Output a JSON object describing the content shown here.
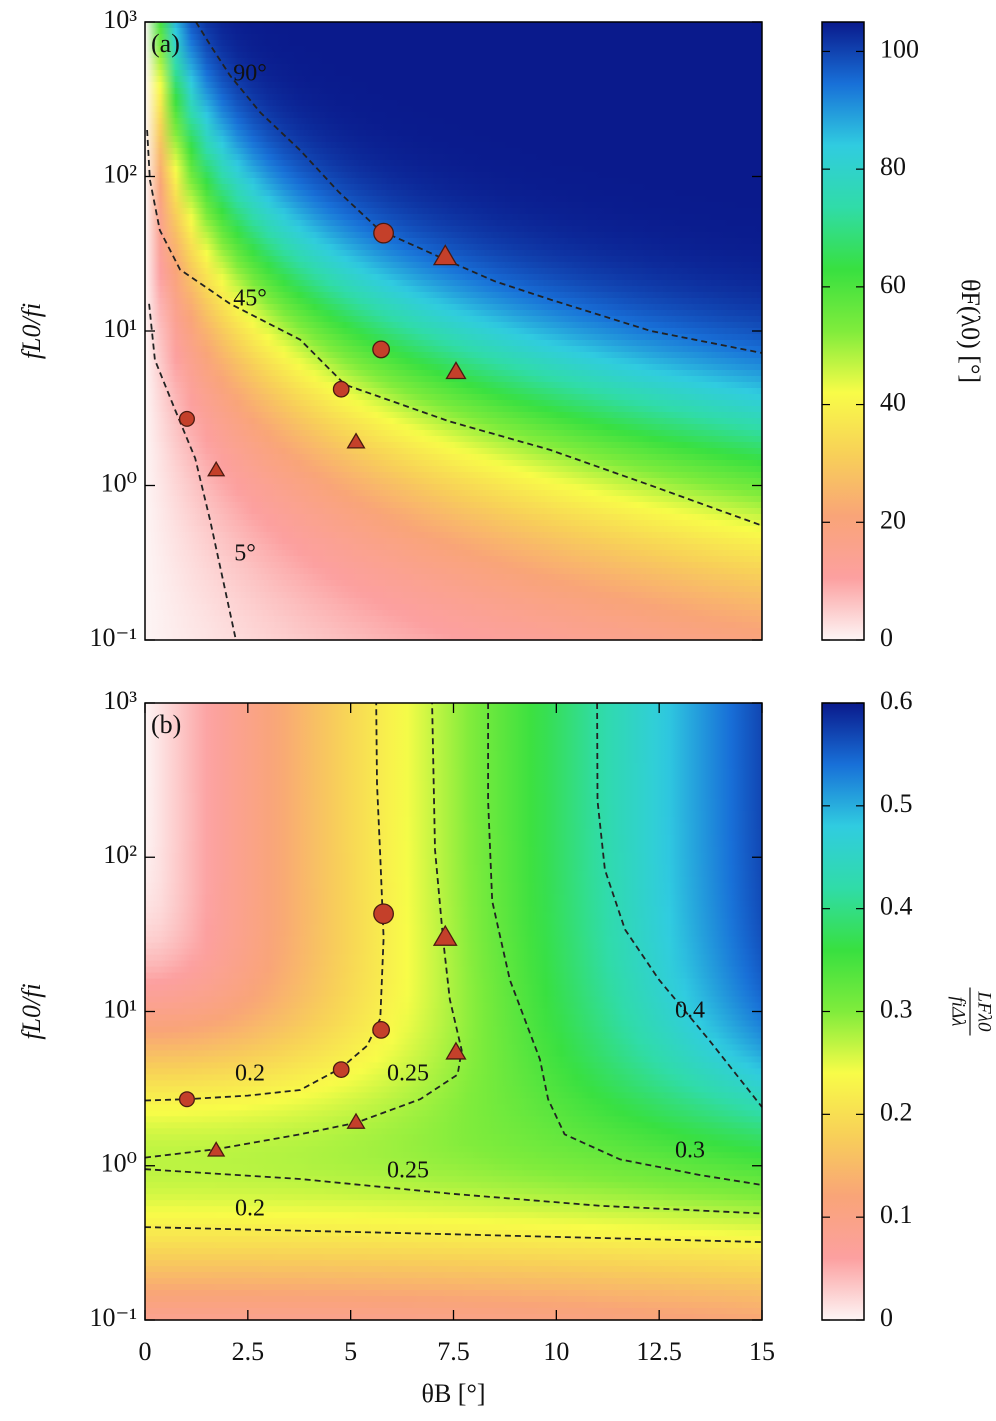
{
  "chart_data": [
    {
      "type": "contour",
      "panel_label": "(a)",
      "ylabel": "fL0/fi",
      "xlim": [
        0,
        15
      ],
      "ylim": [
        0.1,
        1000
      ],
      "log_y": true,
      "yticks": [
        {
          "value": 0.1,
          "label": "10⁻¹"
        },
        {
          "value": 1,
          "label": "10⁰"
        },
        {
          "value": 10,
          "label": "10¹"
        },
        {
          "value": 100,
          "label": "10²"
        },
        {
          "value": 1000,
          "label": "10³"
        }
      ],
      "colormap": [
        "#fdf5f5",
        "#fca0a0",
        "#f9a478",
        "#f8d058",
        "#f8fc48",
        "#80ec3c",
        "#38e040",
        "#30dca8",
        "#30cce0",
        "#1870d8",
        "#0a1a8c"
      ],
      "colorbar": {
        "label": "θF(λ0) [°]",
        "lim": [
          0,
          105
        ],
        "ticks": [
          0,
          20,
          40,
          60,
          80,
          100
        ]
      },
      "contour_color": "#222222",
      "contours": [
        {
          "label": "90°",
          "x": [
            1.24,
            1.6,
            2.07,
            2.8,
            3.77,
            4.7,
            5.7,
            7.3,
            8.5,
            9.85,
            12.3,
            15
          ],
          "y": [
            1000,
            700,
            450,
            260,
            148,
            80,
            45,
            29,
            21,
            16,
            10,
            7.2
          ]
        },
        {
          "label": "45°",
          "x": [
            0.05,
            0.12,
            0.36,
            0.85,
            2.07,
            3.77,
            4.86,
            7.4,
            9.85,
            12.3,
            15
          ],
          "y": [
            200,
            95,
            45,
            25,
            15,
            8.8,
            4.5,
            2.6,
            1.7,
            1.0,
            0.55
          ]
        },
        {
          "label": "5°",
          "x": [
            0.1,
            0.24,
            0.73,
            1.22,
            1.58,
            1.95,
            2.21
          ],
          "y": [
            15,
            6.5,
            3.1,
            1.5,
            0.6,
            0.21,
            0.1
          ]
        }
      ],
      "series": [
        {
          "marker": "circle",
          "color": "#c4402a",
          "edgecolor": "#4a1a10",
          "x": [
            1.02,
            4.77,
            5.74,
            5.8
          ],
          "y": [
            2.7,
            4.2,
            7.6,
            43
          ]
        },
        {
          "marker": "triangle",
          "color": "#c4402a",
          "edgecolor": "#4a1a10",
          "x": [
            1.73,
            5.13,
            7.56,
            7.3
          ],
          "y": [
            1.25,
            1.9,
            5.4,
            30
          ]
        }
      ]
    },
    {
      "type": "contour",
      "panel_label": "(b)",
      "ylabel": "fL0/fi",
      "xlabel": "θB [°]",
      "xlim": [
        0,
        15
      ],
      "xticks": [
        0,
        2.5,
        5,
        7.5,
        10,
        12.5,
        15
      ],
      "ylim": [
        0.1,
        1000
      ],
      "log_y": true,
      "yticks": [
        {
          "value": 0.1,
          "label": "10⁻¹"
        },
        {
          "value": 1,
          "label": "10⁰"
        },
        {
          "value": 10,
          "label": "10¹"
        },
        {
          "value": 100,
          "label": "10²"
        },
        {
          "value": 1000,
          "label": "10³"
        }
      ],
      "colormap": [
        "#fdf5f5",
        "#fca0a0",
        "#f9a478",
        "#f8d058",
        "#f8fc48",
        "#80ec3c",
        "#38e040",
        "#30dca8",
        "#30cce0",
        "#1870d8",
        "#0a1a8c"
      ],
      "colorbar": {
        "label_numerator": "LFλ0",
        "label_denominator": "fiΔλ",
        "lim": [
          0,
          0.6
        ],
        "ticks": [
          0,
          0.1,
          0.2,
          0.3,
          0.4,
          0.5,
          0.6
        ]
      },
      "contour_color": "#222222",
      "contours": [
        {
          "label": "0.2",
          "x": [
            0,
            1.02,
            2.5,
            3.77,
            4.77,
            5.4,
            5.72,
            5.8,
            5.72,
            5.64,
            5.62
          ],
          "y": [
            2.65,
            2.7,
            2.85,
            3.1,
            4.3,
            6,
            9,
            30,
            100,
            300,
            1000
          ]
        },
        {
          "label": "0.25",
          "x": [
            0,
            1.73,
            3.77,
            5.13,
            6.69,
            7.6,
            7.7,
            7.41,
            7.25,
            7.05,
            6.98
          ],
          "y": [
            1.13,
            1.28,
            1.6,
            1.9,
            2.7,
            3.9,
            5.6,
            12,
            29,
            112,
            1000
          ]
        },
        {
          "label": "0.3",
          "x": [
            8.34,
            8.34,
            8.44,
            8.87,
            9.6,
            9.8,
            10.2,
            11.55,
            13.5,
            15
          ],
          "y": [
            1000,
            233,
            52,
            16,
            4.9,
            2.7,
            1.6,
            1.1,
            0.87,
            0.75
          ]
        },
        {
          "label": "0.4",
          "x": [
            10.99,
            11.0,
            11.18,
            11.67,
            12.5,
            13.7,
            15
          ],
          "y": [
            1000,
            233,
            83,
            34,
            16,
            6.6,
            2.4
          ]
        },
        {
          "label": "0.25",
          "x": [
            0,
            3.77,
            7.41,
            11.06,
            15
          ],
          "y": [
            0.95,
            0.82,
            0.66,
            0.55,
            0.49
          ]
        },
        {
          "label": "0.2",
          "x": [
            0,
            7.41,
            15
          ],
          "y": [
            0.4,
            0.36,
            0.32
          ]
        }
      ],
      "series": [
        {
          "marker": "circle",
          "color": "#c4402a",
          "edgecolor": "#4a1a10",
          "x": [
            1.02,
            4.77,
            5.74,
            5.8
          ],
          "y": [
            2.7,
            4.2,
            7.6,
            43
          ]
        },
        {
          "marker": "triangle",
          "color": "#c4402a",
          "edgecolor": "#4a1a10",
          "x": [
            1.73,
            5.13,
            7.56,
            7.3
          ],
          "y": [
            1.25,
            1.9,
            5.4,
            30
          ]
        }
      ]
    }
  ]
}
